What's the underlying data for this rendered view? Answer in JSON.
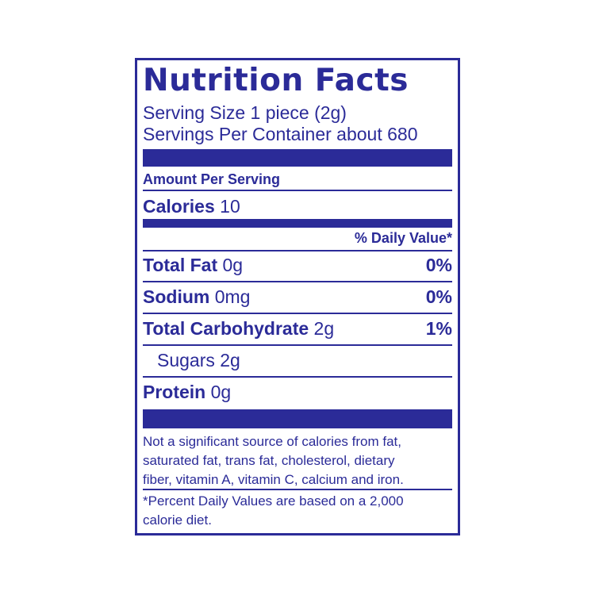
{
  "title": "Nutrition Facts",
  "serving_size": "Serving Size 1 piece (2g)",
  "servings_per_container": "Servings Per Container about 680",
  "amount_per_serving": "Amount Per Serving",
  "calories": {
    "label": "Calories",
    "value": "10"
  },
  "daily_value_header": "% Daily Value*",
  "nutrients": [
    {
      "label": "Total Fat",
      "amount": "0g",
      "dv": "0%"
    },
    {
      "label": "Sodium",
      "amount": "0mg",
      "dv": "0%"
    },
    {
      "label": "Total Carbohydrate",
      "amount": "2g",
      "dv": "1%",
      "sub": [
        {
          "label": "Sugars",
          "amount": "2g"
        }
      ]
    },
    {
      "label": "Protein",
      "amount": "0g"
    }
  ],
  "footnote": [
    "Not a significant source of calories from fat,",
    "saturated fat, trans fat, cholesterol, dietary",
    "fiber, vitamin A, vitamin C, calcium and iron."
  ],
  "percent_note": [
    "*Percent Daily Values are based on a 2,000",
    "calorie diet."
  ]
}
